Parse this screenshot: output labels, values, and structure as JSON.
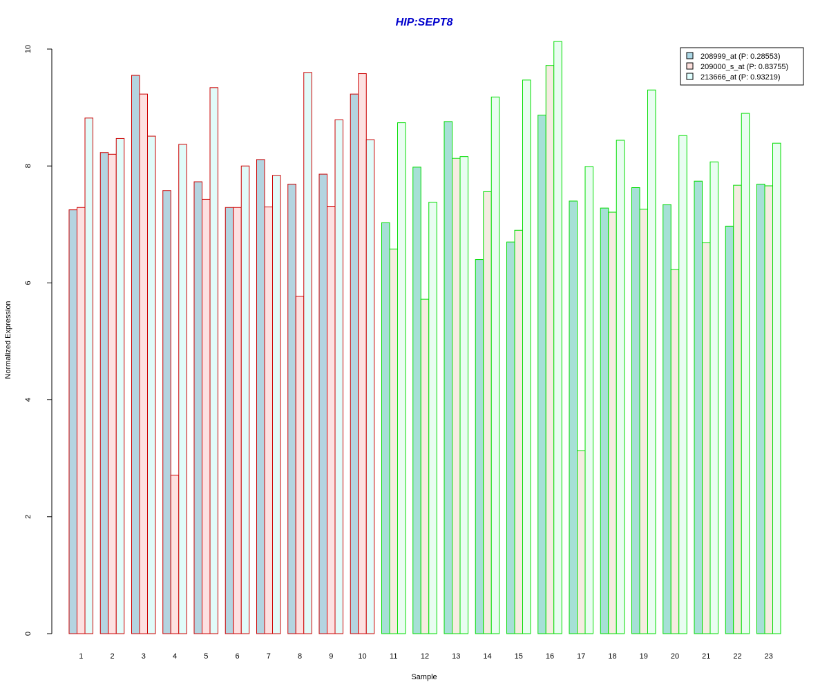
{
  "chart_data": {
    "type": "bar",
    "title": "HIP:SEPT8",
    "xlabel": "Sample",
    "ylabel": "Normalized Expression",
    "ylim": [
      0,
      10
    ],
    "yticks": [
      "0",
      "2",
      "4",
      "6",
      "8",
      "10"
    ],
    "categories": [
      "1",
      "2",
      "3",
      "4",
      "5",
      "6",
      "7",
      "8",
      "9",
      "10",
      "11",
      "12",
      "13",
      "14",
      "15",
      "16",
      "17",
      "18",
      "19",
      "20",
      "21",
      "22",
      "23"
    ],
    "group_border_colors": [
      "#cc0000",
      "#cc0000",
      "#cc0000",
      "#cc0000",
      "#cc0000",
      "#cc0000",
      "#cc0000",
      "#cc0000",
      "#cc0000",
      "#cc0000",
      "#00dd00",
      "#00dd00",
      "#00dd00",
      "#00dd00",
      "#00dd00",
      "#00dd00",
      "#00dd00",
      "#00dd00",
      "#00dd00",
      "#00dd00",
      "#00dd00",
      "#00dd00",
      "#00dd00"
    ],
    "grid": false,
    "legend_position": "top-right",
    "series": [
      {
        "name": "208999_at (P: 0.28553)",
        "fill_colors": [
          "#b4d4e0",
          "#a6e0d6"
        ],
        "values": [
          7.25,
          8.23,
          9.55,
          7.58,
          7.73,
          7.29,
          8.11,
          7.69,
          7.86,
          9.23,
          7.03,
          7.98,
          8.76,
          6.4,
          6.7,
          8.87,
          7.4,
          7.28,
          7.63,
          7.34,
          7.74,
          6.97,
          7.69
        ]
      },
      {
        "name": "209000_s_at (P: 0.83755)",
        "fill_colors": [
          "#fde1e1",
          "#f5ece1"
        ],
        "values": [
          7.29,
          8.2,
          9.23,
          2.71,
          7.43,
          7.29,
          7.3,
          5.77,
          7.31,
          9.58,
          6.58,
          5.72,
          8.13,
          7.56,
          6.9,
          9.72,
          3.13,
          7.21,
          7.26,
          6.23,
          6.69,
          7.67,
          7.66
        ]
      },
      {
        "name": "213666_at (P: 0.93219)",
        "fill_colors": [
          "#e1fbf9",
          "#e9fdf1"
        ],
        "values": [
          8.82,
          8.47,
          8.51,
          8.37,
          9.34,
          8.0,
          7.84,
          9.6,
          8.79,
          8.45,
          8.74,
          7.38,
          8.16,
          9.18,
          9.47,
          10.13,
          7.99,
          8.44,
          9.3,
          8.52,
          8.07,
          8.9,
          8.39
        ]
      }
    ],
    "legend_swatch_colors": [
      "#add8e6",
      "#fde0dd",
      "#e0ffff"
    ]
  },
  "colors": {
    "title": "#0000cc",
    "legend_border": "#000000"
  }
}
